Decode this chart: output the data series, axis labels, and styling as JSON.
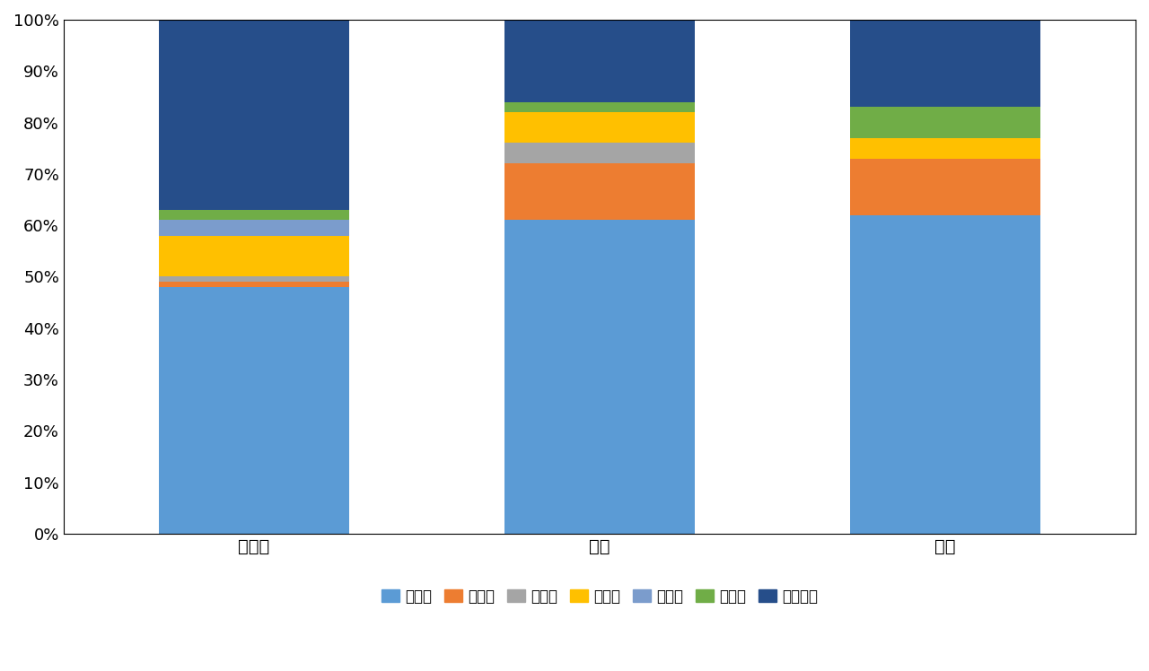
{
  "categories": [
    "本科生",
    "硕士",
    "博士"
  ],
  "series": [
    {
      "name": "江苏省",
      "values": [
        0.48,
        0.61,
        0.62
      ],
      "color": "#5B9BD5"
    },
    {
      "name": "上海市",
      "values": [
        0.01,
        0.11,
        0.11
      ],
      "color": "#ED7D31"
    },
    {
      "name": "浙江省",
      "values": [
        0.01,
        0.04,
        0.0
      ],
      "color": "#A5A5A5"
    },
    {
      "name": "广东省",
      "values": [
        0.08,
        0.06,
        0.04
      ],
      "color": "#FFC000"
    },
    {
      "name": "安徽省",
      "values": [
        0.03,
        0.0,
        0.0
      ],
      "color": "#7B9CCC"
    },
    {
      "name": "山东省",
      "values": [
        0.02,
        0.02,
        0.06
      ],
      "color": "#70AD47"
    },
    {
      "name": "其他地区",
      "values": [
        0.37,
        0.16,
        0.17
      ],
      "color": "#264E8A"
    }
  ],
  "yticks": [
    0.0,
    0.1,
    0.2,
    0.3,
    0.4,
    0.5,
    0.6,
    0.7,
    0.8,
    0.9,
    1.0
  ],
  "ytick_labels": [
    "0%",
    "10%",
    "20%",
    "30%",
    "40%",
    "50%",
    "60%",
    "70%",
    "80%",
    "90%",
    "100%"
  ],
  "bar_width": 0.55,
  "x_positions": [
    0,
    1,
    2
  ],
  "xlim": [
    -0.55,
    2.55
  ],
  "background_color": "#FFFFFF",
  "legend_fontsize": 12,
  "tick_fontsize": 13,
  "category_fontsize": 14
}
